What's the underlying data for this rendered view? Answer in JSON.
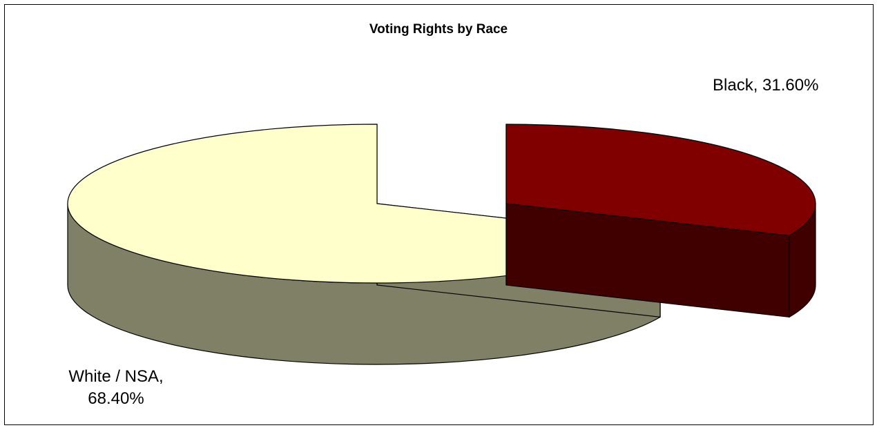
{
  "chart_data": {
    "type": "pie",
    "title": "Voting Rights by Race",
    "three_d": true,
    "exploded": true,
    "slices": [
      {
        "label": "Black",
        "value": 31.6,
        "value_label": "31.60%",
        "display": "Black, 31.60%",
        "top_color": "#800000",
        "side_color": "#400000"
      },
      {
        "label": "White / NSA",
        "value": 68.4,
        "value_label": "68.40%",
        "display_line1": "White / NSA,",
        "display_line2": "68.40%",
        "top_color": "#ffffcc",
        "side_color": "#808066"
      }
    ],
    "legend": "none"
  }
}
